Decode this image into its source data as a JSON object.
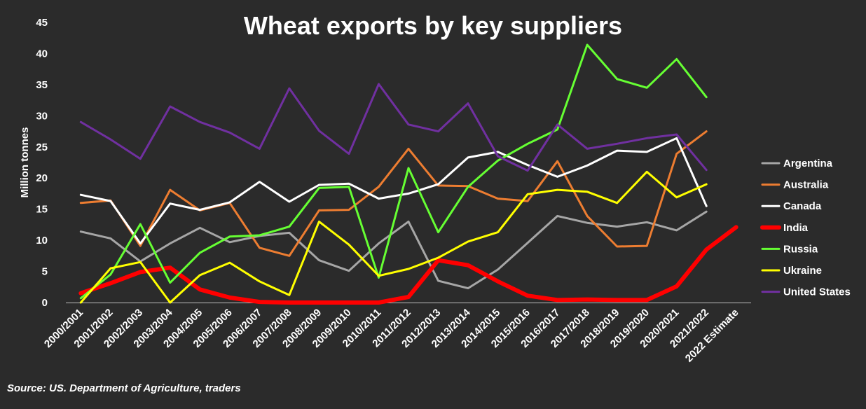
{
  "chart_data": {
    "type": "line",
    "title": "Wheat exports by key suppliers",
    "ylabel": "Million tonnes",
    "xlabel": "",
    "ylim": [
      0,
      45
    ],
    "yticks": [
      0,
      5,
      10,
      15,
      20,
      25,
      30,
      35,
      40,
      45
    ],
    "grid": false,
    "legend": "right",
    "categories": [
      "2000/2001",
      "2001/2002",
      "2002/2003",
      "2003/2004",
      "2004/2005",
      "2005/2006",
      "2006/2007",
      "2007/2008",
      "2008/2009",
      "2009/2010",
      "2010/2011",
      "2011/2012",
      "2012/2013",
      "2013/2014",
      "2014/2015",
      "2015/2016",
      "2016/2017",
      "2017/2018",
      "2018/2019",
      "2019/2020",
      "2020/2021",
      "2021/2022",
      "2022 Estimate"
    ],
    "series": [
      {
        "name": "Argentina",
        "color": "#a6a6a6",
        "width": 3,
        "values": [
          11.4,
          10.3,
          6.6,
          9.5,
          12.0,
          9.7,
          10.7,
          11.2,
          6.8,
          5.1,
          9.5,
          13.0,
          3.5,
          2.3,
          5.3,
          9.6,
          13.9,
          12.8,
          12.2,
          12.9,
          11.6,
          14.6,
          null
        ]
      },
      {
        "name": "Australia",
        "color": "#ed7d31",
        "width": 3,
        "values": [
          16.0,
          16.4,
          9.1,
          18.1,
          14.8,
          16.0,
          8.8,
          7.5,
          14.8,
          14.9,
          18.6,
          24.7,
          18.8,
          18.7,
          16.7,
          16.3,
          22.7,
          13.9,
          9.0,
          9.1,
          23.9,
          27.5,
          null
        ]
      },
      {
        "name": "Canada",
        "color": "#ffffff",
        "width": 3,
        "values": [
          17.3,
          16.3,
          9.5,
          15.9,
          14.9,
          16.1,
          19.4,
          16.2,
          18.9,
          19.1,
          16.7,
          17.5,
          19.0,
          23.3,
          24.2,
          22.1,
          20.2,
          22.0,
          24.4,
          24.2,
          26.4,
          15.5,
          null
        ]
      },
      {
        "name": "India",
        "color": "#ff0000",
        "width": 6,
        "values": [
          1.5,
          3.1,
          4.9,
          5.6,
          2.1,
          0.8,
          0.1,
          0.0,
          0.0,
          0.0,
          0.0,
          0.9,
          6.8,
          6.0,
          3.4,
          1.1,
          0.4,
          0.5,
          0.4,
          0.4,
          2.6,
          8.5,
          12.1
        ]
      },
      {
        "name": "Russia",
        "color": "#66ff33",
        "width": 3,
        "values": [
          0.7,
          4.5,
          12.6,
          3.2,
          8.0,
          10.6,
          10.8,
          12.2,
          18.4,
          18.6,
          4.0,
          21.6,
          11.3,
          18.6,
          22.8,
          25.5,
          27.8,
          41.4,
          35.9,
          34.5,
          39.1,
          33.0,
          null
        ]
      },
      {
        "name": "Ukraine",
        "color": "#ffff00",
        "width": 3,
        "values": [
          0.0,
          5.5,
          6.5,
          0.0,
          4.4,
          6.4,
          3.4,
          1.2,
          13.0,
          9.3,
          4.3,
          5.4,
          7.2,
          9.8,
          11.3,
          17.4,
          18.1,
          17.8,
          16.0,
          21.0,
          16.9,
          19.0,
          null
        ]
      },
      {
        "name": "United States",
        "color": "#7030a0",
        "width": 3,
        "values": [
          29.0,
          26.2,
          23.1,
          31.5,
          29.0,
          27.3,
          24.7,
          34.4,
          27.6,
          23.9,
          35.1,
          28.6,
          27.5,
          32.0,
          23.5,
          21.2,
          28.6,
          24.7,
          25.5,
          26.4,
          27.0,
          21.3,
          null
        ]
      }
    ],
    "source": "Source: US. Department of Agriculture, traders"
  }
}
